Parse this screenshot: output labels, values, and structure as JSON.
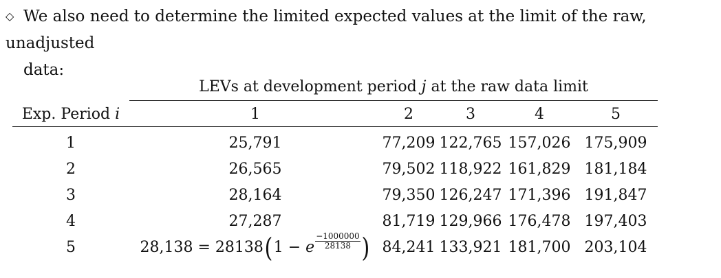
{
  "intro": {
    "bullet": "◇",
    "line1": "We also need to determine the limited expected values at the limit of the raw, unadjusted",
    "line2": "data:"
  },
  "table": {
    "group_header_text": "LEVs at development period",
    "group_header_var": "j",
    "group_header_tail": "at the raw data limit",
    "period_header_text": "Exp. Period",
    "period_header_var": "i",
    "columns": [
      "1",
      "2",
      "3",
      "4",
      "5"
    ],
    "rows": [
      {
        "period": "1",
        "values": [
          "25,791",
          "77,209",
          "122,765",
          "157,026",
          "175,909"
        ]
      },
      {
        "period": "2",
        "values": [
          "26,565",
          "79,502",
          "118,922",
          "161,829",
          "181,184"
        ]
      },
      {
        "period": "3",
        "values": [
          "28,164",
          "79,350",
          "126,247",
          "171,396",
          "191,847"
        ]
      },
      {
        "period": "4",
        "values": [
          "27,287",
          "81,719",
          "129,966",
          "176,478",
          "197,403"
        ]
      },
      {
        "period": "5",
        "values": [
          "28,138",
          "84,241",
          "133,921",
          "181,700",
          "203,104"
        ]
      }
    ],
    "formula": {
      "lhs": "28,138",
      "eq": "=",
      "coef": "28138",
      "one": "1",
      "minus": "−",
      "base": "e",
      "exp_num": "−1000000",
      "exp_den": "28138"
    }
  }
}
